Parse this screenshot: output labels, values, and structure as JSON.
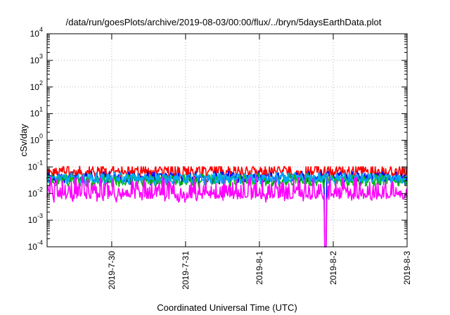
{
  "chart_data": {
    "type": "line",
    "title": "/data/run/goesPlots/archive/2019-08-03/00:00/flux/../bryn/5daysEarthData.plot",
    "xlabel": "Coordinated Universal Time (UTC)",
    "ylabel": "cSv/day",
    "yscale": "log",
    "ylim": [
      0.0001,
      10000
    ],
    "xlim": [
      "2019-07-29T03:00",
      "2019-08-03T00:00"
    ],
    "grid": true,
    "y_tick_exponents": [
      4,
      3,
      2,
      1,
      0,
      -1,
      -2,
      -3,
      -4
    ],
    "x_tick_labels": [
      "2019-7-30",
      "2019-7-31",
      "2019-8-1",
      "2019-8-2",
      "2019-8-3"
    ],
    "x_ticks": [
      "2019-07-30T00:00",
      "2019-07-31T00:00",
      "2019-08-01T00:00",
      "2019-08-02T00:00",
      "2019-08-03T00:00"
    ],
    "series_colors": [
      "#ff0000",
      "#0000ff",
      "#00bb00",
      "#00aaff",
      "#ff00ff"
    ],
    "series_level_ranges": [
      [
        0.04,
        0.09
      ],
      [
        0.025,
        0.06
      ],
      [
        0.02,
        0.05
      ],
      [
        0.025,
        0.055
      ],
      [
        0.006,
        0.035
      ]
    ],
    "dropout": {
      "start": "2019-08-01T21:10",
      "end": "2019-08-01T21:50",
      "value": 0.0001
    }
  }
}
